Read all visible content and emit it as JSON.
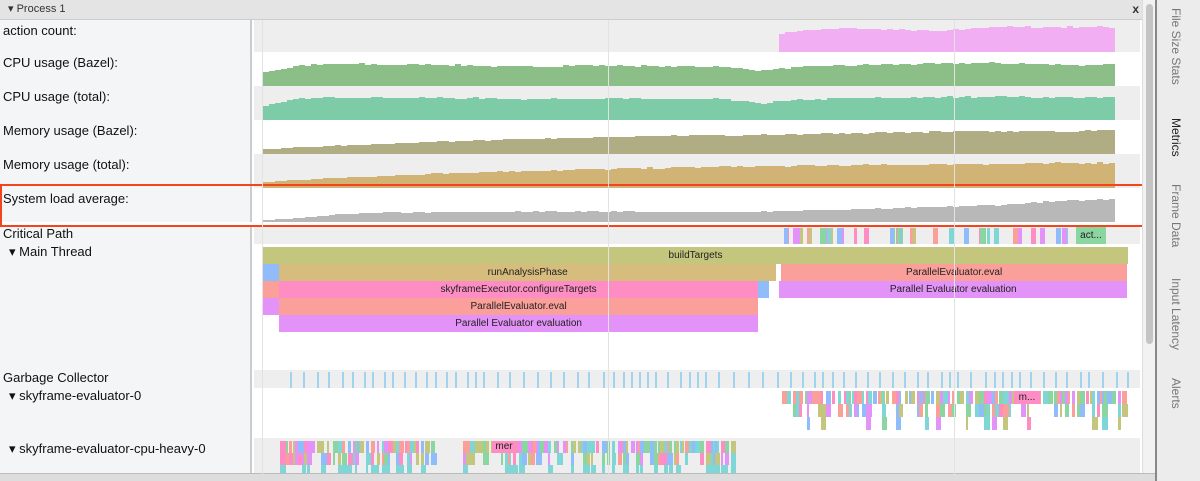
{
  "header": {
    "title": "Process 1",
    "close_label": "x"
  },
  "colors": {
    "action": "#f2aef2",
    "cpu_bazel": "#8bbf87",
    "cpu_total": "#7ecba8",
    "mem_bazel": "#b0ad85",
    "mem_total": "#d1b475",
    "load": "#b8b8b8",
    "highlight": "#f5431b"
  },
  "counters": [
    {
      "label": "action count:",
      "color": "#f2aef2",
      "start": 0.6,
      "profile": [
        0,
        0,
        0,
        0,
        0,
        0,
        0,
        0,
        0,
        0,
        0,
        0.55,
        0.8,
        0.85,
        0.8,
        0.75,
        0.9,
        0.9,
        0.9,
        0.9
      ]
    },
    {
      "label": "CPU usage (Bazel):",
      "color": "#8bbf87",
      "start": 0,
      "profile": [
        0.45,
        0.75,
        0.8,
        0.75,
        0.78,
        0.72,
        0.7,
        0.75,
        0.74,
        0.7,
        0.72,
        0.55,
        0.7,
        0.75,
        0.78,
        0.8,
        0.82,
        0.8,
        0.75,
        0.8
      ]
    },
    {
      "label": "CPU usage (total):",
      "color": "#7ecba8",
      "start": 0,
      "profile": [
        0.45,
        0.78,
        0.82,
        0.8,
        0.8,
        0.78,
        0.76,
        0.78,
        0.76,
        0.75,
        0.76,
        0.6,
        0.75,
        0.78,
        0.8,
        0.82,
        0.85,
        0.82,
        0.8,
        0.82
      ]
    },
    {
      "label": "Memory usage (Bazel):",
      "color": "#b0ad85",
      "start": 0,
      "profile": [
        0.15,
        0.25,
        0.32,
        0.38,
        0.45,
        0.5,
        0.55,
        0.6,
        0.62,
        0.65,
        0.68,
        0.7,
        0.72,
        0.75,
        0.78,
        0.8,
        0.8,
        0.82,
        0.83,
        0.84
      ]
    },
    {
      "label": "Memory usage (total):",
      "color": "#d1b475",
      "start": 0,
      "profile": [
        0.2,
        0.3,
        0.38,
        0.45,
        0.52,
        0.58,
        0.62,
        0.66,
        0.7,
        0.73,
        0.76,
        0.78,
        0.8,
        0.82,
        0.84,
        0.86,
        0.87,
        0.88,
        0.9,
        0.92
      ]
    },
    {
      "label": "System load average:",
      "color": "#b8b8b8",
      "start": 0,
      "profile": [
        0.05,
        0.15,
        0.3,
        0.35,
        0.35,
        0.36,
        0.38,
        0.38,
        0.38,
        0.37,
        0.36,
        0.38,
        0.42,
        0.45,
        0.5,
        0.55,
        0.6,
        0.7,
        0.78,
        0.85
      ]
    }
  ],
  "threads": {
    "critical_path": "Critical Path",
    "critical_slice": "act...",
    "main": "Main Thread",
    "gc": "Garbage Collector",
    "eval0": "skyframe-evaluator-0",
    "eval0_slice": "m...",
    "cpuheavy": "skyframe-evaluator-cpu-heavy-0",
    "cpuheavy_slice": "mer"
  },
  "slices": [
    {
      "name": "buildTargets",
      "color": "#c4c67e",
      "depth": 0,
      "start": 0,
      "end": 1
    },
    {
      "name": "",
      "color": "#90bdf9",
      "depth": 1,
      "start": 0,
      "end": 0.019
    },
    {
      "name": "runAnalysisPhase",
      "color": "#d6bd7d",
      "depth": 1,
      "start": 0.019,
      "end": 0.593
    },
    {
      "name": "ParallelEvaluator.eval",
      "color": "#fb9f9a",
      "depth": 1,
      "start": 0.599,
      "end": 0.999
    },
    {
      "name": "",
      "color": "#fb9f9a",
      "depth": 2,
      "start": 0,
      "end": 0.019
    },
    {
      "name": "skyframeExecutor.configureTargets",
      "color": "#fe8dc3",
      "depth": 2,
      "start": 0.019,
      "end": 0.572
    },
    {
      "name": "",
      "color": "#90bdf9",
      "depth": 2,
      "start": 0.572,
      "end": 0.585
    },
    {
      "name": "Parallel Evaluator evaluation",
      "color": "#e393f7",
      "depth": 2,
      "start": 0.597,
      "end": 0.999
    },
    {
      "name": "",
      "color": "#e393f7",
      "depth": 3,
      "start": 0,
      "end": 0.019
    },
    {
      "name": "ParallelEvaluator.eval",
      "color": "#fb9f9a",
      "depth": 3,
      "start": 0.019,
      "end": 0.572
    },
    {
      "name": "Parallel Evaluator evaluation",
      "color": "#e393f7",
      "depth": 4,
      "start": 0.019,
      "end": 0.572
    }
  ],
  "side_tabs": [
    "File Size Stats",
    "Metrics",
    "Frame Data",
    "Input Latency",
    "Alerts"
  ],
  "active_side_tab": "Metrics"
}
